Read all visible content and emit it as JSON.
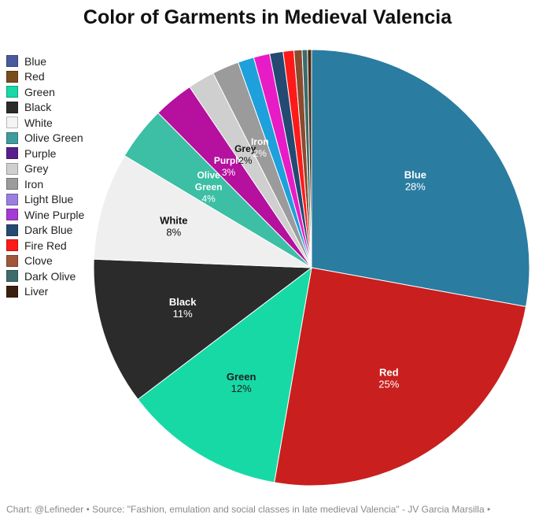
{
  "chart_data": {
    "type": "pie",
    "title": "Color of Garments in Medieval Valencia",
    "slices": [
      {
        "label": "Blue",
        "value": 28,
        "color": "#2a7ca1",
        "label_color": "#ffffff",
        "show_label": true,
        "percent_label": "28%"
      },
      {
        "label": "Red",
        "value": 25,
        "color": "#c91f1f",
        "label_color": "#ffffff",
        "show_label": true,
        "percent_label": "25%"
      },
      {
        "label": "Green",
        "value": 12,
        "color": "#17d9a6",
        "label_color": "#1e1e1e",
        "show_label": true,
        "percent_label": "12%"
      },
      {
        "label": "Black",
        "value": 11,
        "color": "#2b2b2b",
        "label_color": "#ffffff",
        "show_label": true,
        "percent_label": "11%"
      },
      {
        "label": "White",
        "value": 8,
        "color": "#efefef",
        "label_color": "#111111",
        "show_label": true,
        "percent_label": "8%"
      },
      {
        "label": "Olive Green",
        "value": 4,
        "color": "#3cbfa4",
        "label_color": "#ffffff",
        "show_label": true,
        "percent_label": "4%"
      },
      {
        "label": "Purple",
        "value": 3,
        "color": "#b5109e",
        "label_color": "#ffffff",
        "show_label": true,
        "percent_label": "3%"
      },
      {
        "label": "Grey",
        "value": 2,
        "color": "#cfcfcf",
        "label_color": "#111111",
        "show_label": true,
        "percent_label": "2%"
      },
      {
        "label": "Iron",
        "value": 2,
        "color": "#9b9b9b",
        "label_color": "#ffffff",
        "show_label": true,
        "percent_label": "2%"
      },
      {
        "label": "Light Blue",
        "value": 1.2,
        "color": "#1ea0dc",
        "label_color": "#ffffff",
        "show_label": false,
        "percent_label": ""
      },
      {
        "label": "Wine Purple",
        "value": 1.2,
        "color": "#e81cc6",
        "label_color": "#ffffff",
        "show_label": false,
        "percent_label": ""
      },
      {
        "label": "Dark Blue",
        "value": 1,
        "color": "#244a72",
        "label_color": "#ffffff",
        "show_label": false,
        "percent_label": ""
      },
      {
        "label": "Fire Red",
        "value": 0.8,
        "color": "#ff1a1a",
        "label_color": "#ffffff",
        "show_label": false,
        "percent_label": ""
      },
      {
        "label": "Clove",
        "value": 0.6,
        "color": "#8a4b2e",
        "label_color": "#ffffff",
        "show_label": false,
        "percent_label": ""
      },
      {
        "label": "Dark Olive",
        "value": 0.4,
        "color": "#3e6b6b",
        "label_color": "#ffffff",
        "show_label": false,
        "percent_label": ""
      },
      {
        "label": "Liver",
        "value": 0.3,
        "color": "#4a2a12",
        "label_color": "#ffffff",
        "show_label": false,
        "percent_label": ""
      }
    ],
    "legend": {
      "placement": "top-left",
      "items": [
        {
          "label": "Blue",
          "color": "#4a5a9f"
        },
        {
          "label": "Red",
          "color": "#7a4d1c"
        },
        {
          "label": "Green",
          "color": "#17d9a6"
        },
        {
          "label": "Black",
          "color": "#2b2b2b"
        },
        {
          "label": "White",
          "color": "#f4f4f4"
        },
        {
          "label": "Olive Green",
          "color": "#3f9c9e"
        },
        {
          "label": "Purple",
          "color": "#5a1e8c"
        },
        {
          "label": "Grey",
          "color": "#cfcfcf"
        },
        {
          "label": "Iron",
          "color": "#9b9b9b"
        },
        {
          "label": "Light Blue",
          "color": "#9a7fe0"
        },
        {
          "label": "Wine Purple",
          "color": "#a43ad6"
        },
        {
          "label": "Dark Blue",
          "color": "#244a72"
        },
        {
          "label": "Fire Red",
          "color": "#ff1a1a"
        },
        {
          "label": "Clove",
          "color": "#a0573a"
        },
        {
          "label": "Dark Olive",
          "color": "#3e6b6b"
        },
        {
          "label": "Liver",
          "color": "#3b1f0e"
        }
      ]
    }
  },
  "footer": "Chart: @Lefineder • Source: \"Fashion, emulation and social classes in late medieval Valencia\" - JV Garcia Marsilla •"
}
